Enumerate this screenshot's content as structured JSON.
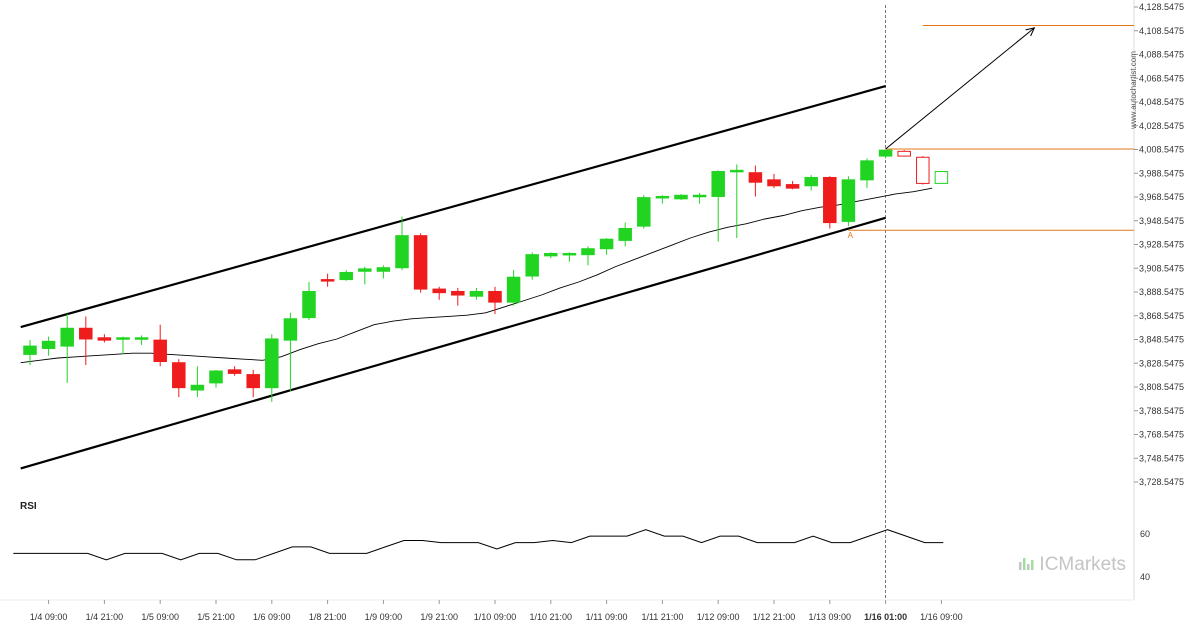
{
  "chart_data": {
    "type": "candlestick",
    "y_ticks": [
      "4,128.5475",
      "4,108.5475",
      "4,088.5475",
      "4,068.5475",
      "4,048.5475",
      "4,028.5475",
      "4,008.5475",
      "3,988.5475",
      "3,968.5475",
      "3,948.5475",
      "3,928.5475",
      "3,908.5475",
      "3,888.5475",
      "3,868.5475",
      "3,848.5475",
      "3,828.5475",
      "3,808.5475",
      "3,788.5475",
      "3,768.5475",
      "3,748.5475",
      "3,728.5475"
    ],
    "y_tick_values": [
      4128.5475,
      4108.5475,
      4088.5475,
      4068.5475,
      4048.5475,
      4028.5475,
      4008.5475,
      3988.5475,
      3968.5475,
      3948.5475,
      3928.5475,
      3908.5475,
      3888.5475,
      3868.5475,
      3848.5475,
      3828.5475,
      3808.5475,
      3788.5475,
      3768.5475,
      3748.5475,
      3728.5475
    ],
    "ylim": [
      3722,
      4132
    ],
    "x_ticks": [
      {
        "label": "1/4 09:00",
        "i": 1
      },
      {
        "label": "1/4 21:00",
        "i": 4
      },
      {
        "label": "1/5 09:00",
        "i": 7
      },
      {
        "label": "1/5 21:00",
        "i": 10
      },
      {
        "label": "1/6 09:00",
        "i": 13
      },
      {
        "label": "1/8 21:00",
        "i": 16
      },
      {
        "label": "1/9 09:00",
        "i": 19
      },
      {
        "label": "1/9 21:00",
        "i": 22
      },
      {
        "label": "1/10 09:00",
        "i": 25
      },
      {
        "label": "1/10 21:00",
        "i": 28
      },
      {
        "label": "1/11 09:00",
        "i": 31
      },
      {
        "label": "1/11 21:00",
        "i": 34
      },
      {
        "label": "1/12 09:00",
        "i": 37
      },
      {
        "label": "1/12 21:00",
        "i": 40
      },
      {
        "label": "1/13 09:00",
        "i": 43
      },
      {
        "label": "1/16 01:00",
        "i": 46,
        "bold": true
      },
      {
        "label": "1/16 09:00",
        "i": 49
      }
    ],
    "candles": [
      {
        "o": 3836,
        "h": 3848,
        "l": 3827,
        "c": 3843
      },
      {
        "o": 3841,
        "h": 3851,
        "l": 3835,
        "c": 3847
      },
      {
        "o": 3843,
        "h": 3870,
        "l": 3812,
        "c": 3858
      },
      {
        "o": 3858,
        "h": 3868,
        "l": 3827,
        "c": 3849
      },
      {
        "o": 3850,
        "h": 3853,
        "l": 3846,
        "c": 3848
      },
      {
        "o": 3849,
        "h": 3851,
        "l": 3836,
        "c": 3850
      },
      {
        "o": 3849,
        "h": 3852,
        "l": 3844,
        "c": 3850
      },
      {
        "o": 3848,
        "h": 3861,
        "l": 3826,
        "c": 3830
      },
      {
        "o": 3829,
        "h": 3832,
        "l": 3800,
        "c": 3808
      },
      {
        "o": 3806,
        "h": 3826,
        "l": 3800,
        "c": 3810
      },
      {
        "o": 3812,
        "h": 3823,
        "l": 3808,
        "c": 3822
      },
      {
        "o": 3823,
        "h": 3826,
        "l": 3818,
        "c": 3820
      },
      {
        "o": 3819,
        "h": 3823,
        "l": 3800,
        "c": 3808
      },
      {
        "o": 3808,
        "h": 3853,
        "l": 3796,
        "c": 3849
      },
      {
        "o": 3848,
        "h": 3871,
        "l": 3805,
        "c": 3866
      },
      {
        "o": 3867,
        "h": 3897,
        "l": 3865,
        "c": 3889
      },
      {
        "o": 3899,
        "h": 3904,
        "l": 3893,
        "c": 3898
      },
      {
        "o": 3899,
        "h": 3907,
        "l": 3898,
        "c": 3905
      },
      {
        "o": 3906,
        "h": 3910,
        "l": 3895,
        "c": 3908
      },
      {
        "o": 3906,
        "h": 3911,
        "l": 3900,
        "c": 3909
      },
      {
        "o": 3909,
        "h": 3952,
        "l": 3907,
        "c": 3936
      },
      {
        "o": 3936,
        "h": 3938,
        "l": 3888,
        "c": 3891
      },
      {
        "o": 3891,
        "h": 3893,
        "l": 3882,
        "c": 3888
      },
      {
        "o": 3889,
        "h": 3892,
        "l": 3877,
        "c": 3886
      },
      {
        "o": 3885,
        "h": 3892,
        "l": 3882,
        "c": 3889
      },
      {
        "o": 3889,
        "h": 3893,
        "l": 3870,
        "c": 3880
      },
      {
        "o": 3880,
        "h": 3907,
        "l": 3877,
        "c": 3901
      },
      {
        "o": 3902,
        "h": 3922,
        "l": 3899,
        "c": 3920
      },
      {
        "o": 3919,
        "h": 3922,
        "l": 3917,
        "c": 3921
      },
      {
        "o": 3920,
        "h": 3922,
        "l": 3914,
        "c": 3921
      },
      {
        "o": 3920,
        "h": 3927,
        "l": 3911,
        "c": 3925
      },
      {
        "o": 3925,
        "h": 3934,
        "l": 3920,
        "c": 3933
      },
      {
        "o": 3932,
        "h": 3947,
        "l": 3927,
        "c": 3942
      },
      {
        "o": 3944,
        "h": 3970,
        "l": 3942,
        "c": 3968
      },
      {
        "o": 3968,
        "h": 3970,
        "l": 3963,
        "c": 3969
      },
      {
        "o": 3967,
        "h": 3971,
        "l": 3966,
        "c": 3970
      },
      {
        "o": 3969,
        "h": 3972,
        "l": 3963,
        "c": 3970
      },
      {
        "o": 3969,
        "h": 3991,
        "l": 3931,
        "c": 3990
      },
      {
        "o": 3991,
        "h": 3996,
        "l": 3934,
        "c": 3991
      },
      {
        "o": 3989,
        "h": 3995,
        "l": 3969,
        "c": 3981
      },
      {
        "o": 3983,
        "h": 3988,
        "l": 3976,
        "c": 3978
      },
      {
        "o": 3979,
        "h": 3982,
        "l": 3975,
        "c": 3976
      },
      {
        "o": 3978,
        "h": 3987,
        "l": 3974,
        "c": 3985
      },
      {
        "o": 3985,
        "h": 3986,
        "l": 3942,
        "c": 3947
      },
      {
        "o": 3948,
        "h": 3986,
        "l": 3944,
        "c": 3983
      },
      {
        "o": 3983,
        "h": 4001,
        "l": 3976,
        "c": 3999
      },
      {
        "o": 4003,
        "h": 4008,
        "l": 4001,
        "c": 4008
      },
      {
        "o": 4007,
        "h": 4008,
        "l": 4003,
        "c": 4003,
        "hollow": true
      },
      {
        "o": 4002,
        "h": 4003,
        "l": 3979,
        "c": 3980,
        "hollow": true
      },
      {
        "o": 3980,
        "h": 3990,
        "l": 3980,
        "c": 3990,
        "hollow": true
      }
    ],
    "moving_average": [
      3829,
      3831,
      3833,
      3834,
      3835,
      3836,
      3837,
      3837,
      3836,
      3835,
      3834,
      3833,
      3832,
      3831,
      3834,
      3840,
      3845,
      3849,
      3855,
      3861,
      3864,
      3866,
      3867,
      3868,
      3869,
      3871,
      3876,
      3881,
      3886,
      3892,
      3897,
      3903,
      3910,
      3916,
      3922,
      3928,
      3934,
      3939,
      3943,
      3946,
      3950,
      3953,
      3957,
      3960,
      3962,
      3965,
      3968,
      3971,
      3973,
      3976
    ],
    "channel_upper": {
      "start": {
        "i": -0.5,
        "v": 3859
      },
      "end": {
        "i": 46,
        "v": 4062
      }
    },
    "channel_lower": {
      "start": {
        "i": -0.5,
        "v": 3740
      },
      "end": {
        "i": 46,
        "v": 3951
      }
    },
    "horizontal_levels": [
      {
        "name": "target",
        "value": 4113,
        "color": "#e07818",
        "from_i": 48
      },
      {
        "name": "current",
        "value": 4009,
        "color": "#e07818",
        "from_i": 46
      },
      {
        "name": "support",
        "value": 3940.5,
        "color": "#e07818",
        "from_i": 44
      }
    ],
    "projection_arrow": {
      "from": {
        "i": 46,
        "v": 4009
      },
      "to": {
        "i": 54,
        "v": 4111
      }
    },
    "event_marker": {
      "label": "A",
      "i": 44.1,
      "v": 3934,
      "color": "#e07818"
    },
    "vertical_line_i": 46,
    "rsi": {
      "title": "RSI",
      "ticks": [
        {
          "label": "60",
          "value": 60
        },
        {
          "label": "40",
          "value": 40
        }
      ],
      "ylim": [
        30,
        68
      ],
      "values": [
        51,
        51,
        51,
        51,
        51,
        48,
        51,
        51,
        51,
        48,
        51,
        51,
        48,
        48,
        51,
        54,
        54,
        51,
        51,
        51,
        54,
        57,
        57,
        56,
        56,
        56,
        53,
        56,
        56,
        57,
        56,
        59,
        59,
        59,
        62,
        59,
        59,
        56,
        59,
        59,
        56,
        56,
        56,
        59,
        56,
        56,
        59,
        62,
        59,
        56,
        56
      ]
    },
    "brand": "ICMarkets",
    "watermark": "www.autochartist.com",
    "colors": {
      "up": "#22d422",
      "down": "#ee1c1c",
      "channel": "#000000",
      "ma": "#000000",
      "level": "#e07818"
    }
  }
}
